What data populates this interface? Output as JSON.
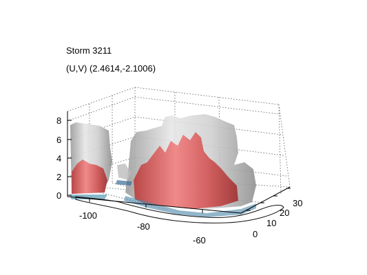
{
  "figure": {
    "title_line1": "Storm 3211",
    "title_line2": "(U,V) (2.4614,-2.1006)"
  },
  "axes": {
    "z_ticks": [
      "0",
      "2",
      "4",
      "6",
      "8"
    ],
    "x_ticks": [
      "-100",
      "-80",
      "-60"
    ],
    "y_ticks": [
      "0",
      "10",
      "20",
      "30"
    ],
    "grid": "dotted",
    "view": "3d"
  },
  "colors": {
    "outer_surface": "#c8c8c8",
    "core_surface": "#d96464",
    "base_shading": "#5a9bb5"
  }
}
